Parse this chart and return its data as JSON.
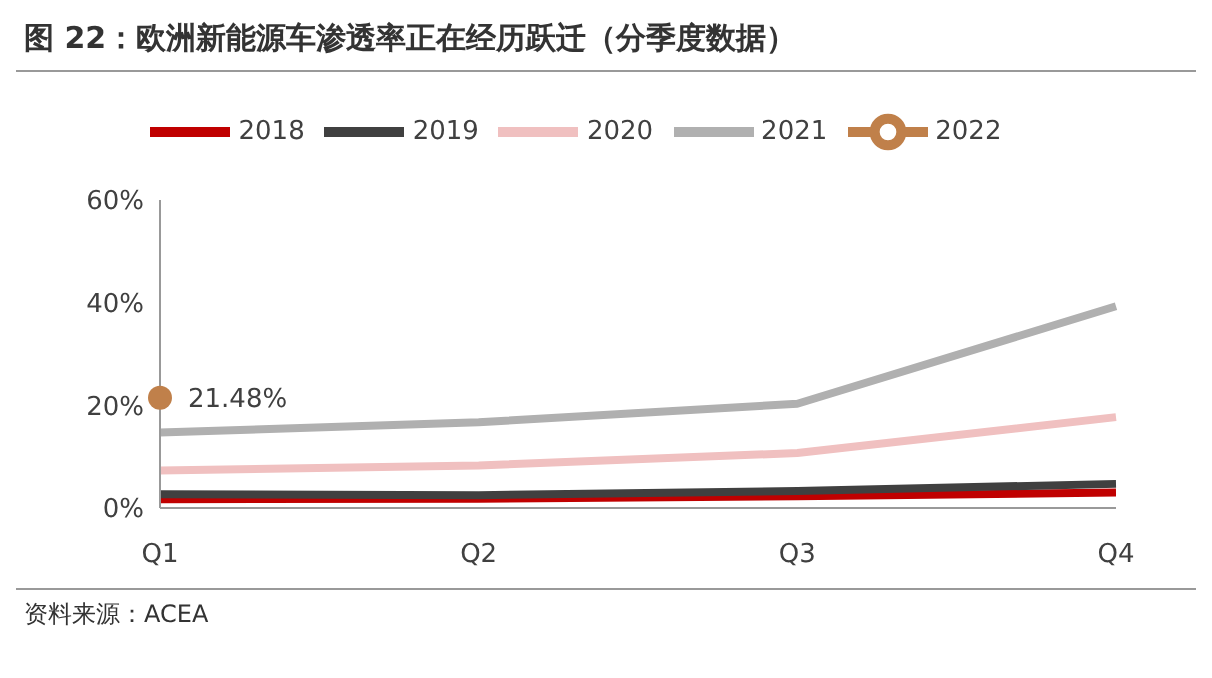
{
  "chart_data": {
    "type": "line",
    "title": "图 22：欧洲新能源车渗透率正在经历跃迁（分季度数据）",
    "annotations": [
      "资料来源：ACEA"
    ],
    "categories": [
      "Q1",
      "Q2",
      "Q3",
      "Q4"
    ],
    "series": [
      {
        "name": "2018",
        "color": "#c00000",
        "values": [
          1.7,
          1.8,
          2.3,
          3.0
        ]
      },
      {
        "name": "2019",
        "color": "#404040",
        "values": [
          2.7,
          2.5,
          3.3,
          4.7
        ]
      },
      {
        "name": "2020",
        "color": "#f0c0c0",
        "values": [
          7.3,
          8.3,
          10.7,
          17.7
        ]
      },
      {
        "name": "2021",
        "color": "#b0b0b0",
        "values": [
          14.7,
          16.7,
          20.3,
          39.3
        ]
      },
      {
        "name": "2022",
        "color": "#c0804a",
        "values": [
          21.48,
          null,
          null,
          null
        ],
        "marker": "circle",
        "value_labels": [
          "21.48%",
          null,
          null,
          null
        ]
      }
    ],
    "ylim": [
      0,
      60
    ],
    "yticks": [
      {
        "value": 0,
        "label": "0%"
      },
      {
        "value": 20,
        "label": "20%"
      },
      {
        "value": 40,
        "label": "40%"
      },
      {
        "value": 60,
        "label": "60%"
      }
    ],
    "grid": false,
    "legend": "top",
    "marker": "none",
    "line_style": "solid"
  }
}
